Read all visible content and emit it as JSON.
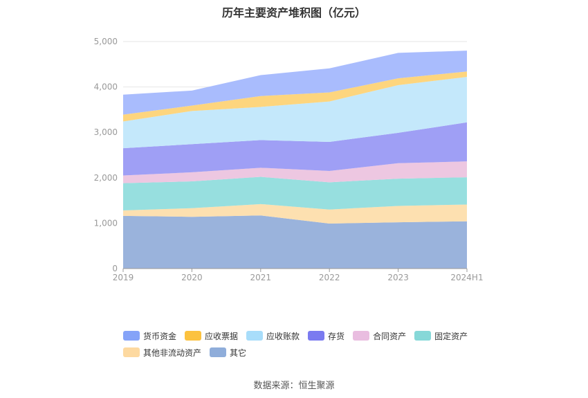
{
  "chart_data": {
    "type": "area",
    "stacked": true,
    "title": "历年主要资产堆积图（亿元）",
    "source": "数据来源：恒生聚源",
    "categories": [
      "2019",
      "2020",
      "2021",
      "2022",
      "2023",
      "2024H1"
    ],
    "ylim": [
      0,
      5000
    ],
    "yticks": [
      "0",
      "1,000",
      "2,000",
      "3,000",
      "4,000",
      "5,000"
    ],
    "grid": true,
    "legend_position": "bottom",
    "series": [
      {
        "name": "其它",
        "color": "#9ab3dc",
        "values": [
          1160,
          1140,
          1170,
          990,
          1020,
          1040
        ]
      },
      {
        "name": "其他非流动资产",
        "color": "#fde0b0",
        "values": [
          120,
          190,
          250,
          310,
          360,
          370
        ]
      },
      {
        "name": "固定资产",
        "color": "#97dfdf",
        "values": [
          600,
          590,
          600,
          600,
          600,
          600
        ]
      },
      {
        "name": "合同资产",
        "color": "#edc7e1",
        "values": [
          170,
          200,
          200,
          250,
          340,
          350
        ]
      },
      {
        "name": "存货",
        "color": "#9f9ff5",
        "values": [
          600,
          620,
          610,
          640,
          670,
          860
        ]
      },
      {
        "name": "应收账款",
        "color": "#c4e8fb",
        "values": [
          590,
          730,
          730,
          890,
          1050,
          1000
        ]
      },
      {
        "name": "应收票据",
        "color": "#fdd57e",
        "values": [
          150,
          120,
          240,
          200,
          150,
          120
        ]
      },
      {
        "name": "货币资金",
        "color": "#a9bcfd",
        "values": [
          440,
          330,
          460,
          530,
          560,
          460
        ]
      }
    ],
    "legend_order": [
      "货币资金",
      "应收票据",
      "应收账款",
      "存货",
      "合同资产",
      "固定资产",
      "其他非流动资产",
      "其它"
    ],
    "legend_colors": {
      "货币资金": "#85a3f8",
      "应收票据": "#fcc23f",
      "应收账款": "#a8ddfa",
      "存货": "#7b7bf0",
      "合同资产": "#e9bde0",
      "固定资产": "#86d8d8",
      "其他非流动资产": "#fdd9a0",
      "其它": "#8fadda"
    }
  }
}
